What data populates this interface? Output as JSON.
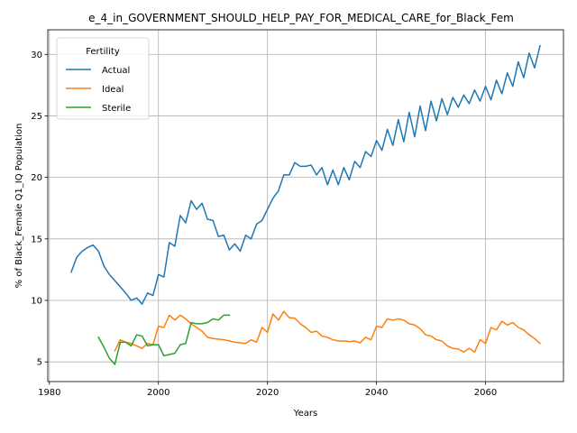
{
  "chart_data": {
    "type": "line",
    "title": "e_4_in_GOVERNMENT_SHOULD_HELP_PAY_FOR_MEDICAL_CARE_for_Black_Fem",
    "xlabel": "Years",
    "ylabel": "% of Black_Female Q1_IQ Population",
    "xlim": [
      1979.7,
      2074.3
    ],
    "ylim": [
      3.4,
      32.0
    ],
    "xticks": [
      1980,
      2000,
      2020,
      2040,
      2060
    ],
    "yticks": [
      5,
      10,
      15,
      20,
      25,
      30
    ],
    "grid": true,
    "legend": {
      "title": "Fertility",
      "position": "top-left"
    },
    "series": [
      {
        "name": "Actual",
        "color": "#1f77b4",
        "points": [
          [
            1984,
            12.3
          ],
          [
            1985,
            13.5
          ],
          [
            1986,
            14.0
          ],
          [
            1987,
            14.3
          ],
          [
            1988,
            14.5
          ],
          [
            1989,
            14.0
          ],
          [
            1990,
            12.8
          ],
          [
            1991,
            12.1
          ],
          [
            1992,
            11.6
          ],
          [
            1993,
            11.1
          ],
          [
            1994,
            10.6
          ],
          [
            1995,
            10.0
          ],
          [
            1996,
            10.2
          ],
          [
            1997,
            9.7
          ],
          [
            1998,
            10.6
          ],
          [
            1999,
            10.4
          ],
          [
            2000,
            12.1
          ],
          [
            2001,
            11.9
          ],
          [
            2002,
            14.7
          ],
          [
            2003,
            14.4
          ],
          [
            2004,
            16.9
          ],
          [
            2005,
            16.3
          ],
          [
            2006,
            18.1
          ],
          [
            2007,
            17.4
          ],
          [
            2008,
            17.9
          ],
          [
            2009,
            16.6
          ],
          [
            2010,
            16.5
          ],
          [
            2011,
            15.2
          ],
          [
            2012,
            15.3
          ],
          [
            2013,
            14.1
          ],
          [
            2014,
            14.6
          ],
          [
            2015,
            14.0
          ],
          [
            2016,
            15.3
          ],
          [
            2017,
            15.0
          ],
          [
            2018,
            16.2
          ],
          [
            2019,
            16.5
          ],
          [
            2020,
            17.4
          ],
          [
            2021,
            18.3
          ],
          [
            2022,
            18.9
          ],
          [
            2023,
            20.2
          ],
          [
            2024,
            20.2
          ],
          [
            2025,
            21.2
          ],
          [
            2026,
            20.9
          ],
          [
            2027,
            20.9
          ],
          [
            2028,
            21.0
          ],
          [
            2029,
            20.2
          ],
          [
            2030,
            20.8
          ],
          [
            2031,
            19.4
          ],
          [
            2032,
            20.6
          ],
          [
            2033,
            19.4
          ],
          [
            2034,
            20.8
          ],
          [
            2035,
            19.8
          ],
          [
            2036,
            21.3
          ],
          [
            2037,
            20.8
          ],
          [
            2038,
            22.1
          ],
          [
            2039,
            21.7
          ],
          [
            2040,
            23.0
          ],
          [
            2041,
            22.2
          ],
          [
            2042,
            23.9
          ],
          [
            2043,
            22.6
          ],
          [
            2044,
            24.7
          ],
          [
            2045,
            22.9
          ],
          [
            2046,
            25.3
          ],
          [
            2047,
            23.3
          ],
          [
            2048,
            25.8
          ],
          [
            2049,
            23.8
          ],
          [
            2050,
            26.2
          ],
          [
            2051,
            24.6
          ],
          [
            2052,
            26.4
          ],
          [
            2053,
            25.1
          ],
          [
            2054,
            26.5
          ],
          [
            2055,
            25.7
          ],
          [
            2056,
            26.7
          ],
          [
            2057,
            26.0
          ],
          [
            2058,
            27.1
          ],
          [
            2059,
            26.2
          ],
          [
            2060,
            27.4
          ],
          [
            2061,
            26.3
          ],
          [
            2062,
            27.9
          ],
          [
            2063,
            26.8
          ],
          [
            2064,
            28.5
          ],
          [
            2065,
            27.4
          ],
          [
            2066,
            29.4
          ],
          [
            2067,
            28.1
          ],
          [
            2068,
            30.1
          ],
          [
            2069,
            28.9
          ],
          [
            2070,
            30.7
          ]
        ]
      },
      {
        "name": "Ideal",
        "color": "#ff7f0e",
        "points": [
          [
            1992,
            5.9
          ],
          [
            1993,
            6.8
          ],
          [
            1994,
            6.6
          ],
          [
            1995,
            6.5
          ],
          [
            1996,
            6.3
          ],
          [
            1997,
            6.1
          ],
          [
            1998,
            6.5
          ],
          [
            1999,
            6.4
          ],
          [
            2000,
            7.9
          ],
          [
            2001,
            7.8
          ],
          [
            2002,
            8.8
          ],
          [
            2003,
            8.4
          ],
          [
            2004,
            8.8
          ],
          [
            2005,
            8.5
          ],
          [
            2006,
            8.1
          ],
          [
            2007,
            7.8
          ],
          [
            2008,
            7.5
          ],
          [
            2009,
            7.0
          ],
          [
            2010,
            6.9
          ],
          [
            2011,
            6.85
          ],
          [
            2012,
            6.8
          ],
          [
            2013,
            6.7
          ],
          [
            2014,
            6.6
          ],
          [
            2015,
            6.55
          ],
          [
            2016,
            6.5
          ],
          [
            2017,
            6.8
          ],
          [
            2018,
            6.6
          ],
          [
            2019,
            7.8
          ],
          [
            2020,
            7.4
          ],
          [
            2021,
            8.9
          ],
          [
            2022,
            8.4
          ],
          [
            2023,
            9.1
          ],
          [
            2024,
            8.6
          ],
          [
            2025,
            8.55
          ],
          [
            2026,
            8.1
          ],
          [
            2027,
            7.8
          ],
          [
            2028,
            7.4
          ],
          [
            2029,
            7.5
          ],
          [
            2030,
            7.1
          ],
          [
            2031,
            7.0
          ],
          [
            2032,
            6.8
          ],
          [
            2033,
            6.7
          ],
          [
            2034,
            6.7
          ],
          [
            2035,
            6.65
          ],
          [
            2036,
            6.7
          ],
          [
            2037,
            6.55
          ],
          [
            2038,
            7.0
          ],
          [
            2039,
            6.8
          ],
          [
            2040,
            7.9
          ],
          [
            2041,
            7.8
          ],
          [
            2042,
            8.5
          ],
          [
            2043,
            8.4
          ],
          [
            2044,
            8.5
          ],
          [
            2045,
            8.4
          ],
          [
            2046,
            8.1
          ],
          [
            2047,
            8.0
          ],
          [
            2048,
            7.7
          ],
          [
            2049,
            7.2
          ],
          [
            2050,
            7.1
          ],
          [
            2051,
            6.8
          ],
          [
            2052,
            6.7
          ],
          [
            2053,
            6.3
          ],
          [
            2054,
            6.1
          ],
          [
            2055,
            6.05
          ],
          [
            2056,
            5.8
          ],
          [
            2057,
            6.1
          ],
          [
            2058,
            5.8
          ],
          [
            2059,
            6.8
          ],
          [
            2060,
            6.5
          ],
          [
            2061,
            7.8
          ],
          [
            2062,
            7.6
          ],
          [
            2063,
            8.3
          ],
          [
            2064,
            8.0
          ],
          [
            2065,
            8.2
          ],
          [
            2066,
            7.8
          ],
          [
            2067,
            7.6
          ],
          [
            2068,
            7.2
          ],
          [
            2069,
            6.9
          ],
          [
            2070,
            6.5
          ]
        ]
      },
      {
        "name": "Sterile",
        "color": "#2ca02c",
        "points": [
          [
            1989,
            7.0
          ],
          [
            1990,
            6.2
          ],
          [
            1991,
            5.3
          ],
          [
            1992,
            4.8
          ],
          [
            1993,
            6.6
          ],
          [
            1994,
            6.6
          ],
          [
            1995,
            6.3
          ],
          [
            1996,
            7.2
          ],
          [
            1997,
            7.1
          ],
          [
            1998,
            6.3
          ],
          [
            1999,
            6.4
          ],
          [
            2000,
            6.4
          ],
          [
            2001,
            5.5
          ],
          [
            2002,
            5.6
          ],
          [
            2003,
            5.7
          ],
          [
            2004,
            6.4
          ],
          [
            2005,
            6.5
          ],
          [
            2006,
            8.2
          ],
          [
            2007,
            8.1
          ],
          [
            2008,
            8.1
          ],
          [
            2009,
            8.2
          ],
          [
            2010,
            8.5
          ],
          [
            2011,
            8.4
          ],
          [
            2012,
            8.8
          ],
          [
            2013,
            8.8
          ]
        ]
      }
    ]
  }
}
